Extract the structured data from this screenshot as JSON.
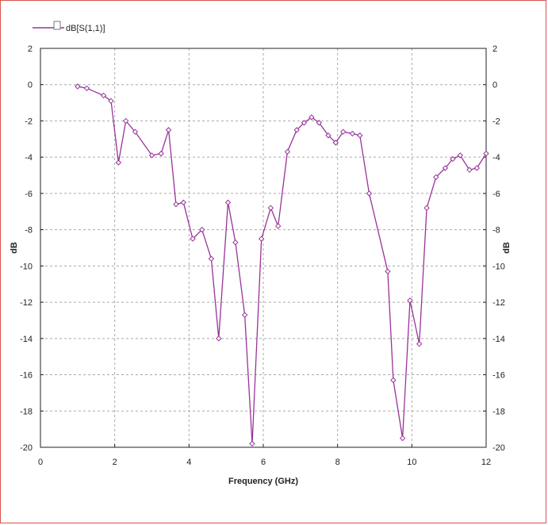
{
  "chart_data": {
    "type": "line",
    "xlabel": "Frequency (GHz)",
    "ylabel": "dB",
    "ylabel_right": "dB",
    "xlim": [
      0,
      12
    ],
    "ylim": [
      -20,
      2
    ],
    "xticks": [
      0,
      2,
      4,
      6,
      8,
      10,
      12
    ],
    "yticks": [
      2,
      0,
      -2,
      -4,
      -6,
      -8,
      -10,
      -12,
      -14,
      -16,
      -18,
      -20
    ],
    "grid": true,
    "legend_position": "top-left",
    "series": [
      {
        "name": "dB[S(1,1)]",
        "color": "#993399",
        "marker": "diamond",
        "x": [
          1.0,
          1.25,
          1.7,
          1.9,
          2.1,
          2.3,
          2.55,
          3.0,
          3.25,
          3.45,
          3.65,
          3.85,
          4.1,
          4.35,
          4.6,
          4.8,
          5.05,
          5.25,
          5.5,
          5.7,
          5.95,
          6.2,
          6.4,
          6.65,
          6.9,
          7.1,
          7.3,
          7.5,
          7.75,
          7.95,
          8.15,
          8.4,
          8.6,
          8.85,
          9.35,
          9.5,
          9.75,
          9.95,
          10.2,
          10.4,
          10.65,
          10.9,
          11.1,
          11.3,
          11.55,
          11.75,
          12.0
        ],
        "y": [
          -0.1,
          -0.2,
          -0.6,
          -0.9,
          -4.3,
          -2.0,
          -2.6,
          -3.9,
          -3.8,
          -2.5,
          -6.6,
          -6.5,
          -8.5,
          -8.0,
          -9.6,
          -14.0,
          -6.5,
          -8.7,
          -12.7,
          -19.8,
          -8.5,
          -6.8,
          -7.8,
          -3.7,
          -2.5,
          -2.1,
          -1.8,
          -2.1,
          -2.8,
          -3.2,
          -2.6,
          -2.7,
          -2.8,
          -6.0,
          -10.3,
          -16.3,
          -19.5,
          -11.9,
          -14.3,
          -6.8,
          -5.1,
          -4.6,
          -4.1,
          -3.9,
          -4.7,
          -4.6,
          -3.8
        ]
      }
    ]
  }
}
